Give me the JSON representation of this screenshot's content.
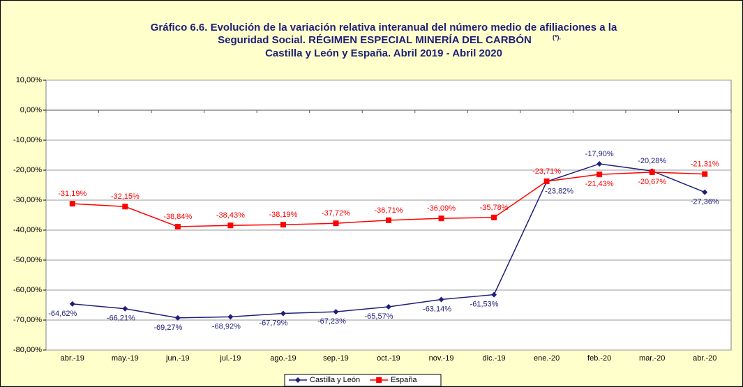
{
  "chart_data": {
    "type": "line",
    "title": [
      "Gráfico 6.6. Evolución de la variación relativa interanual del número medio de  afiliaciones a la",
      "Seguridad Social. RÉGIMEN ESPECIAL MINERÍA DEL CARBÓN",
      "Castilla y León y España. Abril 2019 - Abril 2020"
    ],
    "title_note": "(*).",
    "categories": [
      "abr.-19",
      "may.-19",
      "jun.-19",
      "jul.-19",
      "ago.-19",
      "sep.-19",
      "oct.-19",
      "nov.-19",
      "dic.-19",
      "ene.-20",
      "feb.-20",
      "mar.-20",
      "abr.-20"
    ],
    "series": [
      {
        "name": "Castilla y León",
        "color": "#1f1f7a",
        "marker": "diamond",
        "values": [
          -64.62,
          -66.21,
          -69.27,
          -68.92,
          -67.79,
          -67.23,
          -65.57,
          -63.14,
          -61.53,
          -23.82,
          -17.9,
          -20.28,
          -27.36
        ],
        "value_labels": [
          "-64,62%",
          "-66,21%",
          "-69,27%",
          "-68,92%",
          "-67,79%",
          "-67,23%",
          "-65,57%",
          "-63,14%",
          "-61,53%",
          "-23,82%",
          "-17,90%",
          "-20,28%",
          "-27,36%"
        ]
      },
      {
        "name": "España",
        "color": "#ff0000",
        "marker": "square",
        "values": [
          -31.19,
          -32.15,
          -38.84,
          -38.43,
          -38.19,
          -37.72,
          -36.71,
          -36.09,
          -35.78,
          -23.71,
          -21.43,
          -20.67,
          -21.31
        ],
        "value_labels": [
          "-31,19%",
          "-32,15%",
          "-38,84%",
          "-38,43%",
          "-38,19%",
          "-37,72%",
          "-36,71%",
          "-36,09%",
          "-35,78%",
          "-23,71%",
          "-21,43%",
          "-20,67%",
          "-21,31%"
        ]
      }
    ],
    "ylim": [
      -80,
      10
    ],
    "yticks": [
      {
        "value": -80,
        "label": "-80,00%"
      },
      {
        "value": -70,
        "label": "-70,00%"
      },
      {
        "value": -60,
        "label": "-60,00%"
      },
      {
        "value": -50,
        "label": "-50,00%"
      },
      {
        "value": -40,
        "label": "-40,00%"
      },
      {
        "value": -30,
        "label": "-30,00%"
      },
      {
        "value": -20,
        "label": "-20,00%"
      },
      {
        "value": -10,
        "label": "-10,00%"
      },
      {
        "value": 0,
        "label": "0,00%"
      },
      {
        "value": 10,
        "label": "10,00%"
      }
    ],
    "grid": true,
    "legend": "bottom"
  }
}
